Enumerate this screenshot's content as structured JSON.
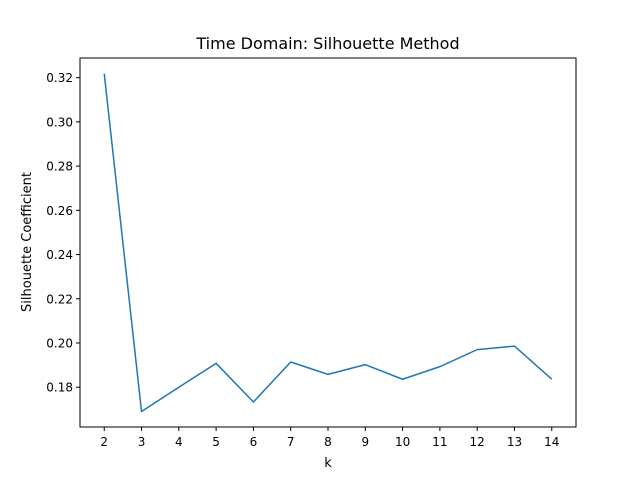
{
  "chart_data": {
    "type": "line",
    "title": "Time Domain: Silhouette Method",
    "xlabel": "k",
    "ylabel": "Silhouette Coefficient",
    "x": [
      2,
      3,
      4,
      5,
      6,
      7,
      8,
      9,
      10,
      11,
      12,
      13,
      14
    ],
    "series": [
      {
        "values": [
          0.3218,
          0.169,
          0.18,
          0.1908,
          0.1733,
          0.1914,
          0.1858,
          0.1902,
          0.1836,
          0.1893,
          0.197,
          0.1986,
          0.1836
        ],
        "color": "#1f77b4"
      }
    ],
    "xlim": [
      1.35,
      14.65
    ],
    "ylim": [
      0.162,
      0.3289
    ],
    "x_ticks": [
      2,
      3,
      4,
      5,
      6,
      7,
      8,
      9,
      10,
      11,
      12,
      13,
      14
    ],
    "x_tick_labels": [
      "2",
      "3",
      "4",
      "5",
      "6",
      "7",
      "8",
      "9",
      "10",
      "11",
      "12",
      "13",
      "14"
    ],
    "y_ticks": [
      0.18,
      0.2,
      0.22,
      0.24,
      0.26,
      0.28,
      0.3,
      0.32
    ],
    "y_tick_labels": [
      "0.18",
      "0.20",
      "0.22",
      "0.24",
      "0.26",
      "0.28",
      "0.30",
      "0.32"
    ],
    "grid": false,
    "legend": "none"
  }
}
